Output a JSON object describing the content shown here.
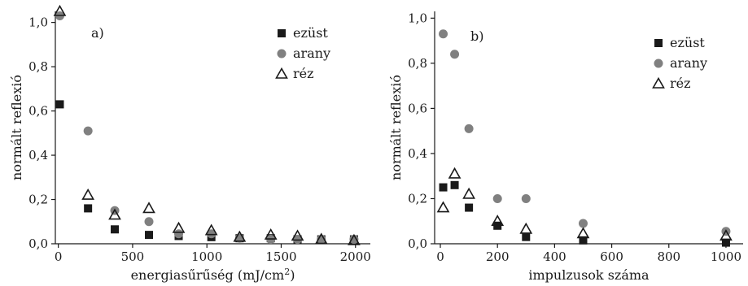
{
  "chart_data": [
    {
      "type": "scatter",
      "panel_label": "a)",
      "xlabel": "energiasűrűség (mJ/cm",
      "xlabel_sup": "2",
      "xlabel_close": ")",
      "ylabel": "normált reflexió",
      "xlim": [
        -20,
        2100
      ],
      "ylim": [
        0,
        1.05
      ],
      "xticks": [
        0,
        500,
        1000,
        1500,
        2000
      ],
      "xtick_labels": [
        "0",
        "500",
        "1000",
        "1500",
        "2000"
      ],
      "yticks": [
        0,
        0.2,
        0.4,
        0.6,
        0.8,
        1.0
      ],
      "ytick_labels": [
        "0,0",
        "0,2",
        "0,4",
        "0,6",
        "0,8",
        "1,0"
      ],
      "legend_position": "top-right",
      "series": [
        {
          "name": "ezüst",
          "marker": "square",
          "color": "#1a1a1a",
          "x": [
            10,
            200,
            380,
            610,
            810,
            1030,
            1220,
            1430,
            1610,
            1770,
            1990
          ],
          "y": [
            0.63,
            0.16,
            0.065,
            0.04,
            0.035,
            0.03,
            0.025,
            0.025,
            0.02,
            0.02,
            0.02
          ]
        },
        {
          "name": "arany",
          "marker": "circle",
          "color": "#808080",
          "x": [
            10,
            200,
            380,
            610,
            810,
            1030,
            1220,
            1430,
            1610,
            1770,
            1990
          ],
          "y": [
            1.03,
            0.51,
            0.15,
            0.1,
            0.045,
            0.045,
            0.025,
            0.02,
            0.02,
            0.02,
            0.02
          ]
        },
        {
          "name": "réz",
          "marker": "triangle",
          "color": "#1a1a1a",
          "x": [
            10,
            200,
            380,
            610,
            810,
            1030,
            1220,
            1430,
            1610,
            1770,
            1990
          ],
          "y": [
            1.05,
            0.22,
            0.13,
            0.16,
            0.07,
            0.06,
            0.03,
            0.04,
            0.035,
            0.02,
            0.015
          ]
        }
      ]
    },
    {
      "type": "scatter",
      "panel_label": "b)",
      "xlabel": "impulzusok száma",
      "ylabel": "normált reflexió",
      "xlim": [
        -20,
        1060
      ],
      "ylim": [
        0,
        1.03
      ],
      "xticks": [
        0,
        200,
        400,
        600,
        800,
        1000
      ],
      "xtick_labels": [
        "0",
        "200",
        "400",
        "600",
        "800",
        "1000"
      ],
      "yticks": [
        0,
        0.2,
        0.4,
        0.6,
        0.8,
        1.0
      ],
      "ytick_labels": [
        "0,0",
        "0,2",
        "0,4",
        "0,6",
        "0,8",
        "1,0"
      ],
      "legend_position": "top-right",
      "series": [
        {
          "name": "ezüst",
          "marker": "square",
          "color": "#1a1a1a",
          "x": [
            10,
            50,
            100,
            200,
            300,
            500,
            1000
          ],
          "y": [
            0.25,
            0.26,
            0.16,
            0.08,
            0.03,
            0.015,
            0.005
          ]
        },
        {
          "name": "arany",
          "marker": "circle",
          "color": "#808080",
          "x": [
            10,
            50,
            100,
            200,
            300,
            500,
            1000
          ],
          "y": [
            0.93,
            0.84,
            0.51,
            0.2,
            0.2,
            0.09,
            0.055
          ]
        },
        {
          "name": "réz",
          "marker": "triangle",
          "color": "#1a1a1a",
          "x": [
            10,
            50,
            100,
            200,
            300,
            500,
            1000
          ],
          "y": [
            0.16,
            0.31,
            0.22,
            0.1,
            0.065,
            0.045,
            0.035
          ]
        }
      ]
    }
  ]
}
